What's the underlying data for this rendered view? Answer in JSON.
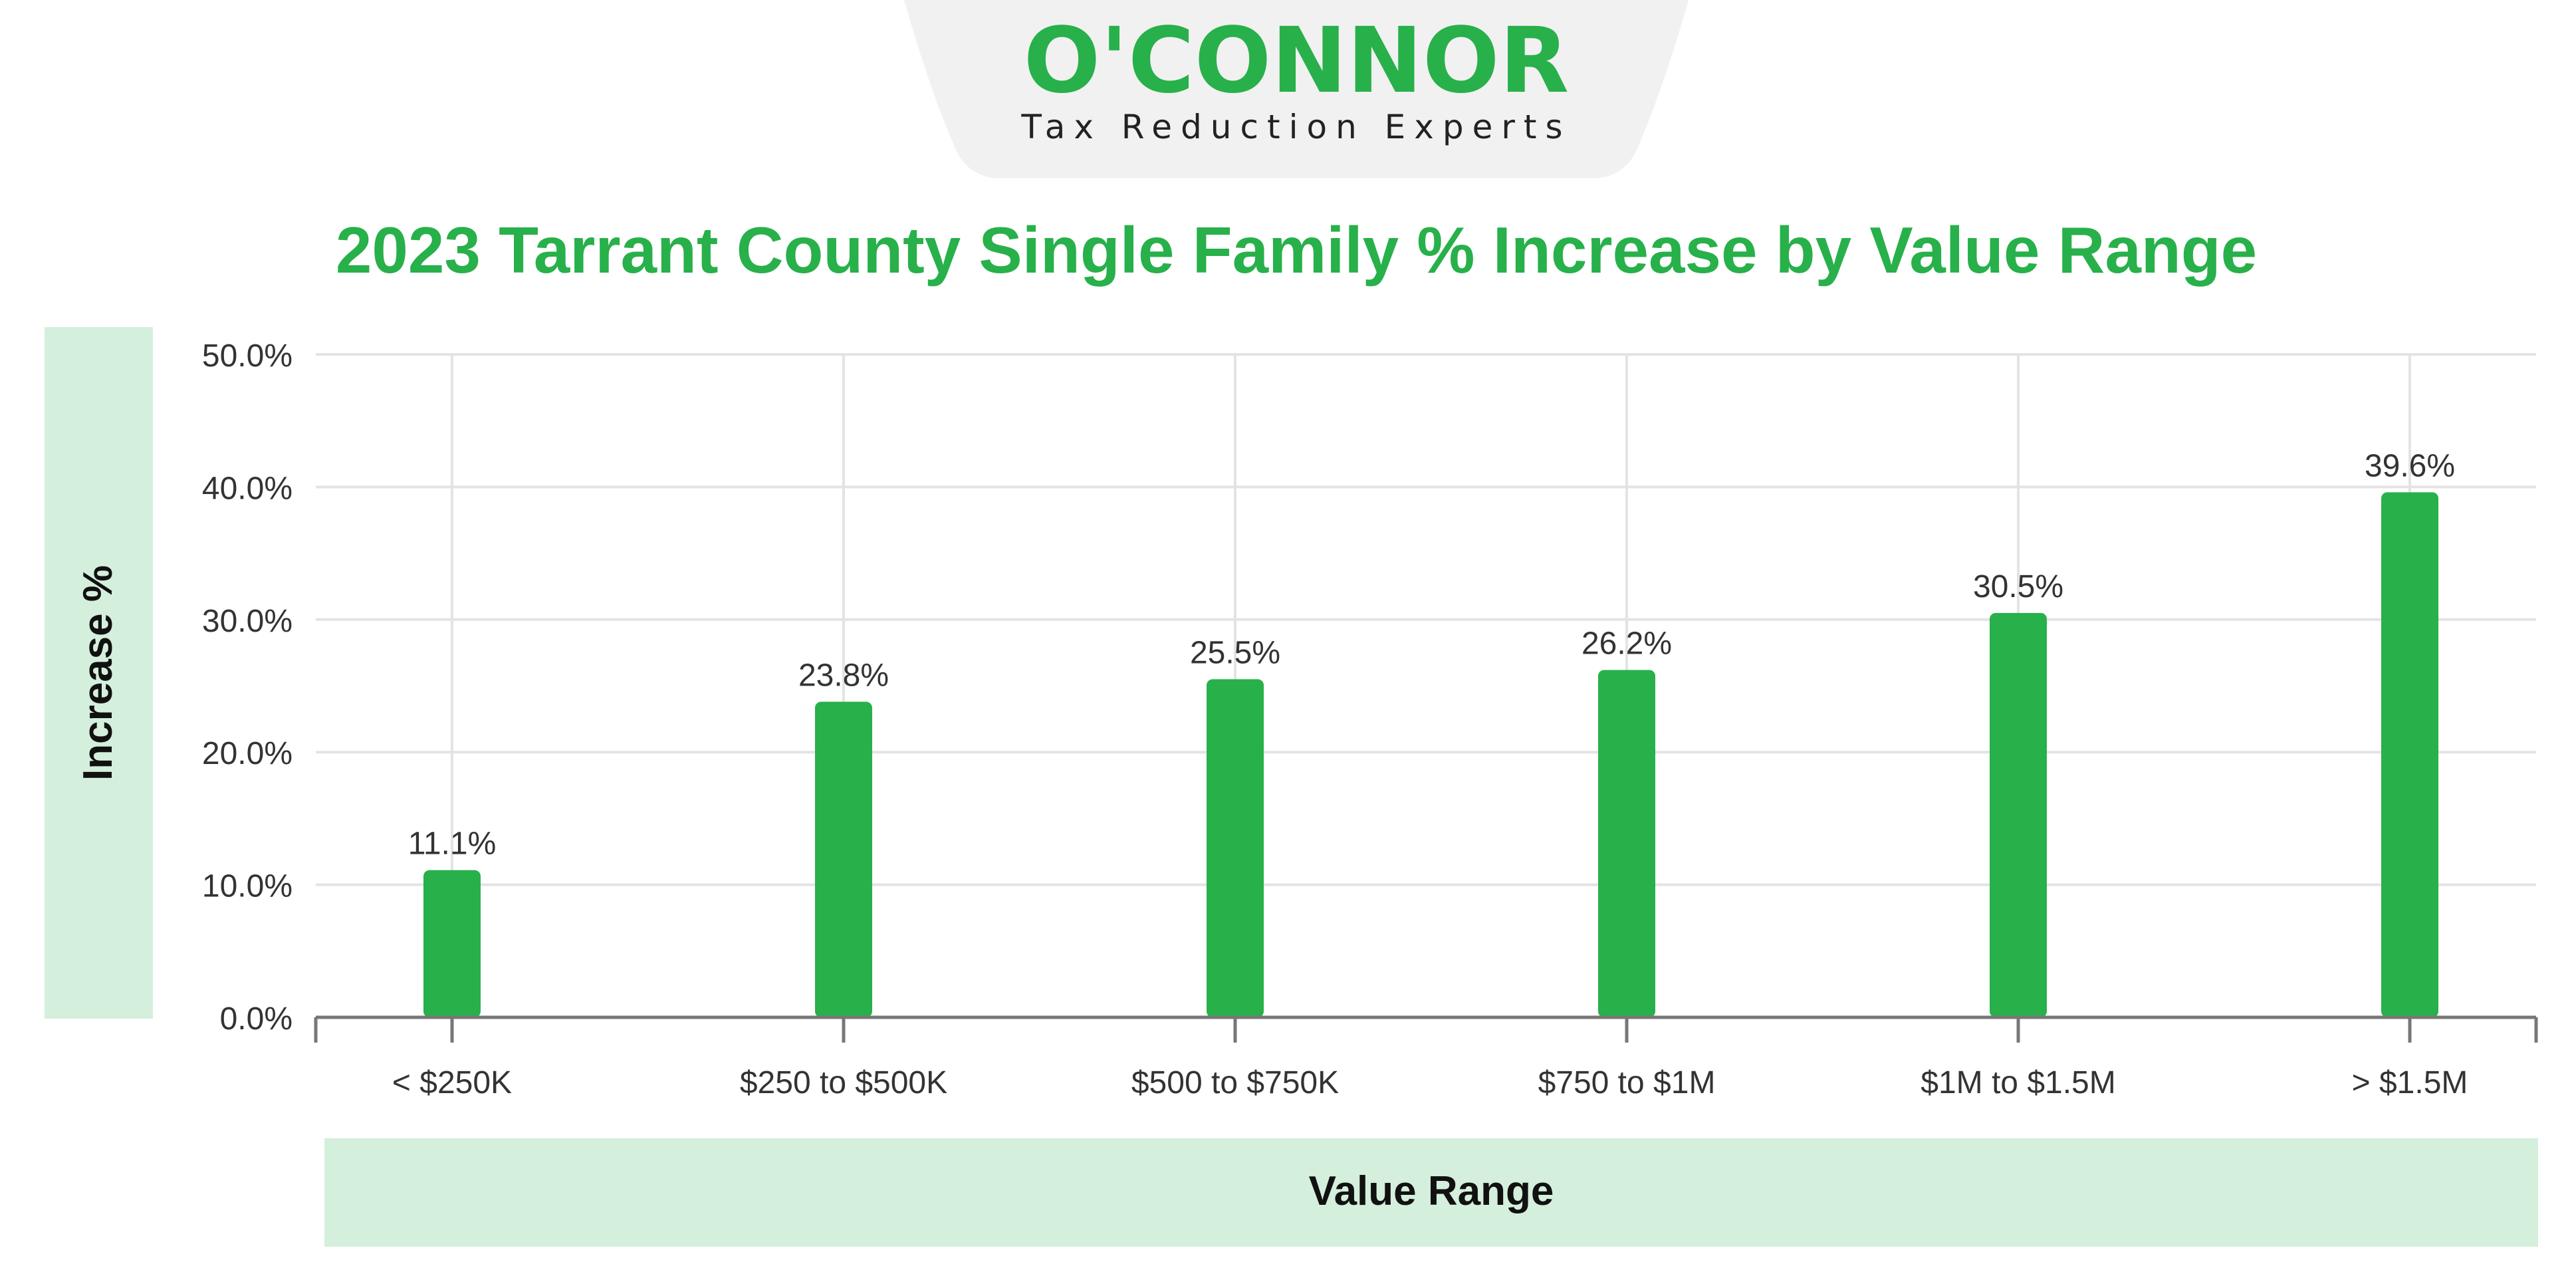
{
  "logo": {
    "wordmark": "O'CONNOR",
    "tagline": "Tax Reduction Experts",
    "color": "#28b04a"
  },
  "chart_data": {
    "type": "bar",
    "title": "2023 Tarrant County Single Family % Increase by Value Range",
    "xlabel": "Value Range",
    "ylabel": "Increase %",
    "categories": [
      "< $250K",
      "$250 to $500K",
      "$500 to $750K",
      "$750 to $1M",
      "$1M to $1.5M",
      "> $1.5M"
    ],
    "values": [
      11.1,
      23.8,
      25.5,
      26.2,
      30.5,
      39.6
    ],
    "data_labels": [
      "11.1%",
      "23.8%",
      "25.5%",
      "26.2%",
      "30.5%",
      "39.6%"
    ],
    "ylim": [
      0,
      50
    ],
    "yticks": [
      0,
      10,
      20,
      30,
      40,
      50
    ],
    "ytick_labels": [
      "0.0%",
      "10.0%",
      "20.0%",
      "30.0%",
      "40.0%",
      "50.0%"
    ],
    "grid": true,
    "colors": {
      "bar": "#28b04a",
      "title": "#28b04a",
      "axis_panel": "#d4efdc",
      "grid": "#e3e3e3",
      "axis": "#777777",
      "text": "#333333",
      "header_bg": "#f1f1f1"
    }
  }
}
